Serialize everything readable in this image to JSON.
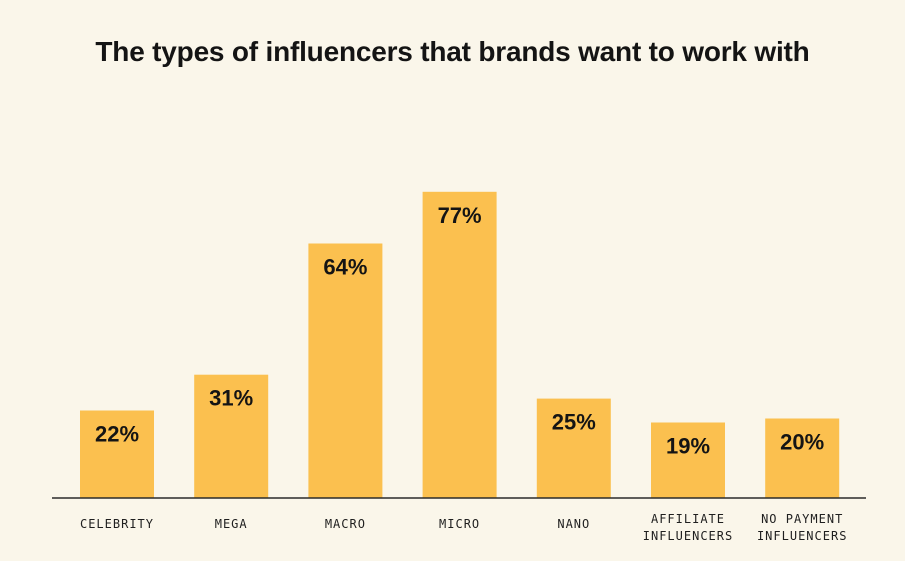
{
  "chart_data": {
    "type": "bar",
    "title": "The types of influencers that brands want to work with",
    "categories": [
      [
        "CELEBRITY"
      ],
      [
        "MEGA"
      ],
      [
        "MACRO"
      ],
      [
        "MICRO"
      ],
      [
        "NANO"
      ],
      [
        "AFFILIATE",
        "INFLUENCERS"
      ],
      [
        "NO PAYMENT",
        "INFLUENCERS"
      ]
    ],
    "values": [
      22,
      31,
      64,
      77,
      25,
      19,
      20
    ],
    "value_labels": [
      "22%",
      "31%",
      "64%",
      "77%",
      "25%",
      "19%",
      "20%"
    ],
    "unit": "%",
    "ylim": [
      0,
      80
    ],
    "grid": false,
    "legend": "none",
    "colors": {
      "bar": "#fbc04f",
      "background": "#faf6ea",
      "text": "#141414"
    }
  }
}
